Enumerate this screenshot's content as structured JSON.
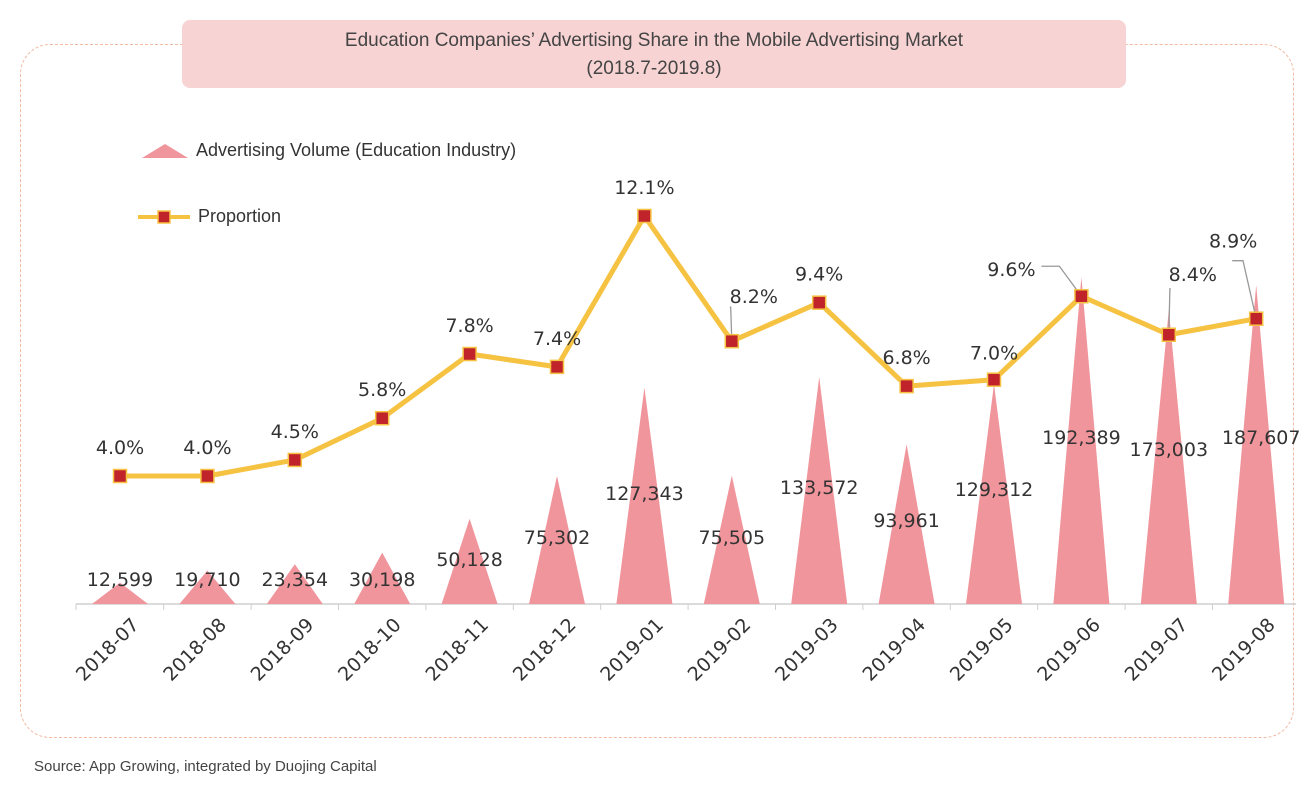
{
  "title": {
    "line1": "Education Companies’  Advertising Share in the Mobile Advertising Market",
    "line2": "(2018.7-2019.8)"
  },
  "source": "Source: App Growing, integrated by Duojing Capital",
  "colors": {
    "volume": "#f0959c",
    "proportion_line": "#f5c242",
    "proportion_marker": "#c0242a",
    "title_bg": "#f7d3d3",
    "frame": "#f2b9a3"
  },
  "chart_data": {
    "type": "bar",
    "categories": [
      "2018-07",
      "2018-08",
      "2018-09",
      "2018-10",
      "2018-11",
      "2018-12",
      "2019-01",
      "2019-02",
      "2019-03",
      "2019-04",
      "2019-05",
      "2019-06",
      "2019-07",
      "2019-08"
    ],
    "series": [
      {
        "name": "Advertising Volume (Education Industry)",
        "type": "triangle-bar",
        "values": [
          12599,
          19710,
          23354,
          30198,
          50128,
          75302,
          127343,
          75505,
          133572,
          93961,
          129312,
          192389,
          173003,
          187607
        ],
        "labels": [
          "12,599",
          "19,710",
          "23,354",
          "30,198",
          "50,128",
          "75,302",
          "127,343",
          "75,505",
          "133,572",
          "93,961",
          "129,312",
          "192,389",
          "173,003",
          "187,607"
        ]
      },
      {
        "name": "Proportion",
        "type": "line",
        "values": [
          4.0,
          4.0,
          4.5,
          5.8,
          7.8,
          7.4,
          12.1,
          8.2,
          9.4,
          6.8,
          7.0,
          9.6,
          8.4,
          8.9
        ],
        "labels": [
          "4.0%",
          "4.0%",
          "4.5%",
          "5.8%",
          "7.8%",
          "7.4%",
          "12.1%",
          "8.2%",
          "9.4%",
          "6.8%",
          "7.0%",
          "9.6%",
          "8.4%",
          "8.9%"
        ]
      }
    ],
    "legend": "top-left",
    "grid": false
  }
}
